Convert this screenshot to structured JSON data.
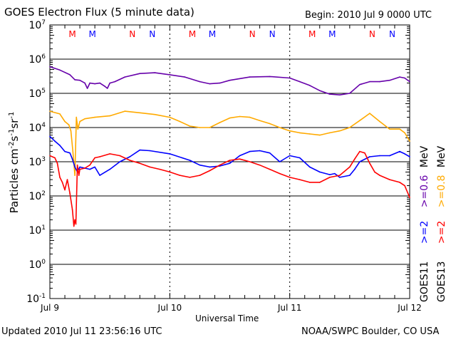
{
  "header": {
    "title": "GOES Electron Flux (5 minute data)",
    "begin": "Begin: 2010 Jul 9 0000 UTC"
  },
  "footer": {
    "updated": "Updated 2010 Jul 11 23:56:16 UTC",
    "credit": "NOAA/SWPC Boulder, CO USA"
  },
  "legend": {
    "goes11_label": "GOES11",
    "goes13_label": "GOES13",
    "goes11_2mev": ">=2",
    "goes11_06mev": ">=0.6",
    "goes13_2mev": ">=2",
    "goes13_08mev": ">=0.8",
    "mev1": "MeV",
    "mev2": "MeV"
  },
  "colors": {
    "goes11_high": "#0000ff",
    "goes11_low": "#6600aa",
    "goes13_high": "#ff0000",
    "goes13_low": "#ffaa00"
  },
  "chart_data": {
    "type": "line",
    "title": "GOES Electron Flux (5 minute data)",
    "xlabel": "Universal Time",
    "ylabel": "Particles cm-2 s-1 sr-1",
    "ylabel_parts": [
      "Particles cm",
      "-2",
      "s",
      "-1",
      "sr",
      "-1"
    ],
    "yscale": "log",
    "ylim": [
      0.1,
      10000000
    ],
    "xlim_hours": [
      0,
      72
    ],
    "x_ticks": [
      {
        "hour": 0,
        "label": "Jul 9"
      },
      {
        "hour": 24,
        "label": "Jul 10"
      },
      {
        "hour": 48,
        "label": "Jul 11"
      },
      {
        "hour": 72,
        "label": "Jul 12"
      }
    ],
    "y_ticks": [
      {
        "exp": 7,
        "label": "10",
        "sup": "7"
      },
      {
        "exp": 6,
        "label": "10",
        "sup": "6"
      },
      {
        "exp": 5,
        "label": "10",
        "sup": "5"
      },
      {
        "exp": 4,
        "label": "10",
        "sup": "4"
      },
      {
        "exp": 3,
        "label": "10",
        "sup": "3"
      },
      {
        "exp": 2,
        "label": "10",
        "sup": "2"
      },
      {
        "exp": 1,
        "label": "10",
        "sup": "1"
      },
      {
        "exp": 0,
        "label": "10",
        "sup": "0"
      },
      {
        "exp": -1,
        "label": "10",
        "sup": "-1"
      }
    ],
    "threshold": {
      "value": 1000,
      "style": "dashed"
    },
    "markers": [
      {
        "hour": 4.5,
        "label": "M",
        "sat": "GOES13"
      },
      {
        "hour": 8.5,
        "label": "M",
        "sat": "GOES11"
      },
      {
        "hour": 16.5,
        "label": "N",
        "sat": "GOES13"
      },
      {
        "hour": 20.5,
        "label": "N",
        "sat": "GOES11"
      },
      {
        "hour": 28.5,
        "label": "M",
        "sat": "GOES13"
      },
      {
        "hour": 32.5,
        "label": "M",
        "sat": "GOES11"
      },
      {
        "hour": 40.5,
        "label": "N",
        "sat": "GOES13"
      },
      {
        "hour": 44.5,
        "label": "N",
        "sat": "GOES11"
      },
      {
        "hour": 52.5,
        "label": "M",
        "sat": "GOES13"
      },
      {
        "hour": 56.5,
        "label": "M",
        "sat": "GOES11"
      },
      {
        "hour": 64.5,
        "label": "N",
        "sat": "GOES13"
      },
      {
        "hour": 68.5,
        "label": "N",
        "sat": "GOES11"
      }
    ],
    "series": [
      {
        "name": "GOES11 >=0.6 MeV",
        "color": "#6600aa",
        "hours": [
          0,
          2,
          4,
          5,
          6,
          7,
          7.5,
          8,
          9,
          10,
          11,
          11.5,
          12,
          13,
          15,
          18,
          21,
          24,
          27,
          30,
          32,
          34,
          36,
          40,
          44,
          48,
          50,
          52,
          54,
          56,
          58,
          60,
          62,
          64,
          66,
          68,
          70,
          71,
          72
        ],
        "values": [
          600000,
          480000,
          350000,
          250000,
          240000,
          200000,
          140000,
          200000,
          190000,
          200000,
          160000,
          140000,
          200000,
          220000,
          300000,
          380000,
          400000,
          350000,
          300000,
          220000,
          190000,
          200000,
          240000,
          300000,
          310000,
          280000,
          220000,
          170000,
          120000,
          95000,
          90000,
          100000,
          180000,
          220000,
          220000,
          240000,
          300000,
          280000,
          220000
        ]
      },
      {
        "name": "GOES13 >=0.8 MeV",
        "color": "#ffaa00",
        "hours": [
          0,
          2,
          3,
          3.8,
          4.2,
          4.6,
          5,
          5.3,
          5.6,
          6,
          7,
          9,
          12,
          15,
          18,
          21,
          24,
          26,
          28,
          30,
          32,
          34,
          36,
          38,
          40,
          42,
          44,
          46,
          48,
          50,
          52,
          54,
          56,
          58,
          60,
          62,
          64,
          66,
          68,
          70,
          71,
          72
        ],
        "values": [
          30000,
          25000,
          15000,
          12000,
          8000,
          2000,
          400,
          20000,
          9000,
          15000,
          18000,
          20000,
          22000,
          30000,
          27000,
          24000,
          20000,
          15000,
          11000,
          10000,
          10000,
          14000,
          19000,
          21000,
          20000,
          16000,
          13000,
          10000,
          8000,
          7000,
          6500,
          6000,
          7000,
          8000,
          10000,
          16000,
          26000,
          15000,
          9000,
          9000,
          7000,
          4000
        ]
      },
      {
        "name": "GOES11 >=2 MeV",
        "color": "#0000ff",
        "hours": [
          0,
          1,
          2,
          3,
          4,
          4.5,
          5,
          5.5,
          6,
          7,
          8,
          9,
          10,
          12,
          14,
          16,
          18,
          20,
          24,
          28,
          30,
          32,
          34,
          36,
          38,
          40,
          42,
          44,
          46,
          48,
          50,
          52,
          54,
          56,
          57,
          58,
          60,
          61,
          62,
          64,
          66,
          68,
          70,
          71,
          72
        ],
        "values": [
          5500,
          4000,
          3000,
          2000,
          1800,
          1200,
          700,
          500,
          700,
          650,
          600,
          700,
          400,
          600,
          1000,
          1400,
          2200,
          2100,
          1700,
          1100,
          800,
          700,
          750,
          900,
          1500,
          2000,
          2100,
          1800,
          1000,
          1500,
          1300,
          700,
          500,
          420,
          450,
          350,
          400,
          600,
          1000,
          1400,
          1500,
          1500,
          2000,
          1700,
          1400
        ]
      },
      {
        "name": "GOES13 >=2 MeV",
        "color": "#ff0000",
        "hours": [
          0,
          1,
          1.5,
          2,
          2.5,
          3,
          3.5,
          4,
          4.5,
          4.8,
          5,
          5.2,
          5.5,
          5.8,
          6,
          7,
          8,
          9,
          10,
          12,
          14,
          16,
          18,
          20,
          22,
          24,
          26,
          28,
          30,
          32,
          34,
          36,
          38,
          40,
          42,
          44,
          46,
          48,
          50,
          52,
          54,
          56,
          58,
          60,
          61,
          62,
          63,
          64,
          65,
          66,
          68,
          70,
          71,
          72
        ],
        "values": [
          1500,
          1300,
          900,
          350,
          250,
          150,
          300,
          120,
          40,
          13,
          20,
          15,
          800,
          400,
          600,
          650,
          800,
          1300,
          1400,
          1700,
          1500,
          1100,
          900,
          700,
          600,
          500,
          400,
          350,
          400,
          550,
          800,
          1100,
          1200,
          1000,
          800,
          600,
          450,
          350,
          300,
          250,
          250,
          350,
          400,
          700,
          1200,
          2000,
          1800,
          900,
          500,
          400,
          300,
          250,
          200,
          90
        ]
      }
    ],
    "legend": [
      {
        "label": "GOES11 >=2 MeV",
        "color": "#0000ff"
      },
      {
        "label": "GOES11 >=0.6 MeV",
        "color": "#6600aa"
      },
      {
        "label": "GOES13 >=2 MeV",
        "color": "#ff0000"
      },
      {
        "label": "GOES13 >=0.8 MeV",
        "color": "#ffaa00"
      }
    ],
    "legend_position": "right"
  }
}
